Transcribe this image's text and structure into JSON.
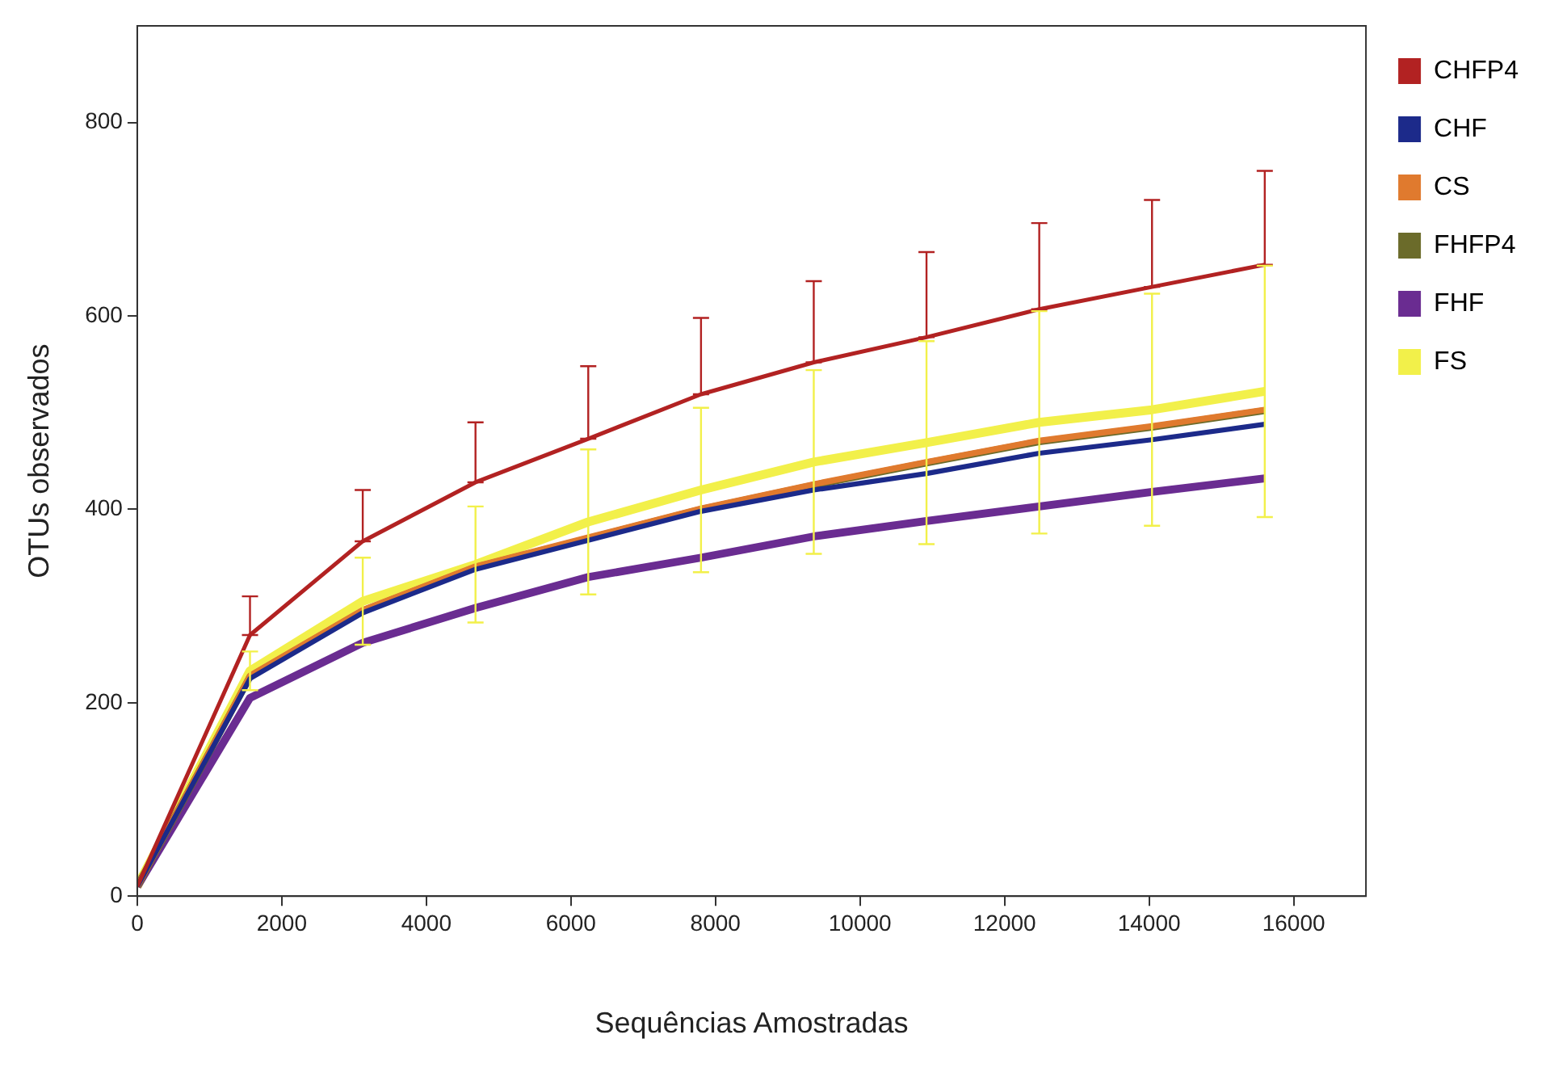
{
  "chart_data": {
    "type": "line",
    "xlabel": "Sequências Amostradas",
    "ylabel": "OTUs observados",
    "x": [
      0,
      1560,
      3120,
      4680,
      6240,
      7800,
      9360,
      10920,
      12480,
      14040,
      15600
    ],
    "xlim": [
      0,
      17000
    ],
    "xticks": [
      0,
      2000,
      4000,
      6000,
      8000,
      10000,
      12000,
      14000,
      16000
    ],
    "ylim": [
      0,
      900
    ],
    "yticks": [
      0,
      200,
      400,
      600,
      800
    ],
    "series": [
      {
        "name": "CHFP4",
        "color": "#b22222",
        "values": [
          10,
          270,
          367,
          428,
          473,
          519,
          552,
          578,
          607,
          630,
          653
        ],
        "errors": [
          null,
          [
            270,
            310
          ],
          [
            367,
            420
          ],
          [
            428,
            490
          ],
          [
            473,
            548
          ],
          [
            519,
            598
          ],
          [
            552,
            636
          ],
          [
            578,
            666
          ],
          [
            607,
            696
          ],
          [
            630,
            720
          ],
          [
            653,
            750
          ]
        ]
      },
      {
        "name": "CHF",
        "color": "#1c2a8a",
        "values": [
          10,
          225,
          293,
          338,
          368,
          398,
          420,
          437,
          458,
          472,
          488
        ]
      },
      {
        "name": "CS",
        "color": "#e07a2e",
        "values": [
          10,
          228,
          296,
          341,
          371,
          401,
          426,
          449,
          471,
          486,
          503
        ]
      },
      {
        "name": "FHFP4",
        "color": "#6b6b2a",
        "values": [
          10,
          227,
          295,
          340,
          370,
          400,
          425,
          448,
          470,
          485,
          502
        ]
      },
      {
        "name": "FHF",
        "color": "#6a2c91",
        "values": [
          10,
          205,
          262,
          298,
          330,
          350,
          372,
          388,
          403,
          418,
          432
        ]
      },
      {
        "name": "FS",
        "color": "#f2f04a",
        "values": [
          10,
          233,
          305,
          343,
          387,
          420,
          449,
          469,
          490,
          503,
          522
        ],
        "errors": [
          null,
          20,
          45,
          60,
          75,
          85,
          95,
          105,
          115,
          120,
          130
        ]
      }
    ],
    "legend": "right",
    "grid": false,
    "marker": "none",
    "line_style": "solid"
  }
}
